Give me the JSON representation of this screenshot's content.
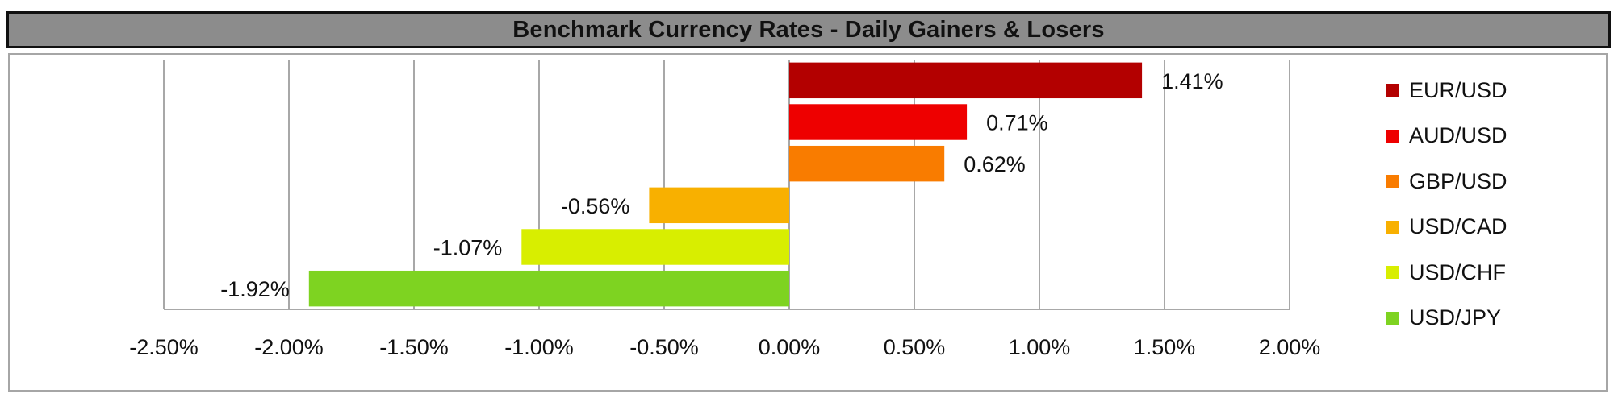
{
  "title": "Benchmark Currency Rates - Daily Gainers & Losers",
  "chart_data": {
    "type": "bar",
    "orientation": "horizontal",
    "title": "Benchmark Currency Rates - Daily Gainers & Losers",
    "xlabel": "",
    "ylabel": "",
    "xlim": [
      -0.025,
      0.02
    ],
    "x_ticks": [
      -0.025,
      -0.02,
      -0.015,
      -0.01,
      -0.005,
      0,
      0.005,
      0.01,
      0.015,
      0.02
    ],
    "x_tick_labels": [
      "-2.50%",
      "-2.00%",
      "-1.50%",
      "-1.00%",
      "-0.50%",
      "0.00%",
      "0.50%",
      "1.00%",
      "1.50%",
      "2.00%"
    ],
    "grid": "vertical",
    "legend_position": "right",
    "series": [
      {
        "name": "EUR/USD",
        "value": 0.0141,
        "label": "1.41%",
        "color": "#b30000"
      },
      {
        "name": "AUD/USD",
        "value": 0.0071,
        "label": "0.71%",
        "color": "#ee0000"
      },
      {
        "name": "GBP/USD",
        "value": 0.0062,
        "label": "0.62%",
        "color": "#f97c00"
      },
      {
        "name": "USD/CAD",
        "value": -0.0056,
        "label": "-0.56%",
        "color": "#f8b000"
      },
      {
        "name": "USD/CHF",
        "value": -0.0107,
        "label": "-1.07%",
        "color": "#d8ee00"
      },
      {
        "name": "USD/JPY",
        "value": -0.0192,
        "label": "-1.92%",
        "color": "#7ed321"
      }
    ]
  }
}
